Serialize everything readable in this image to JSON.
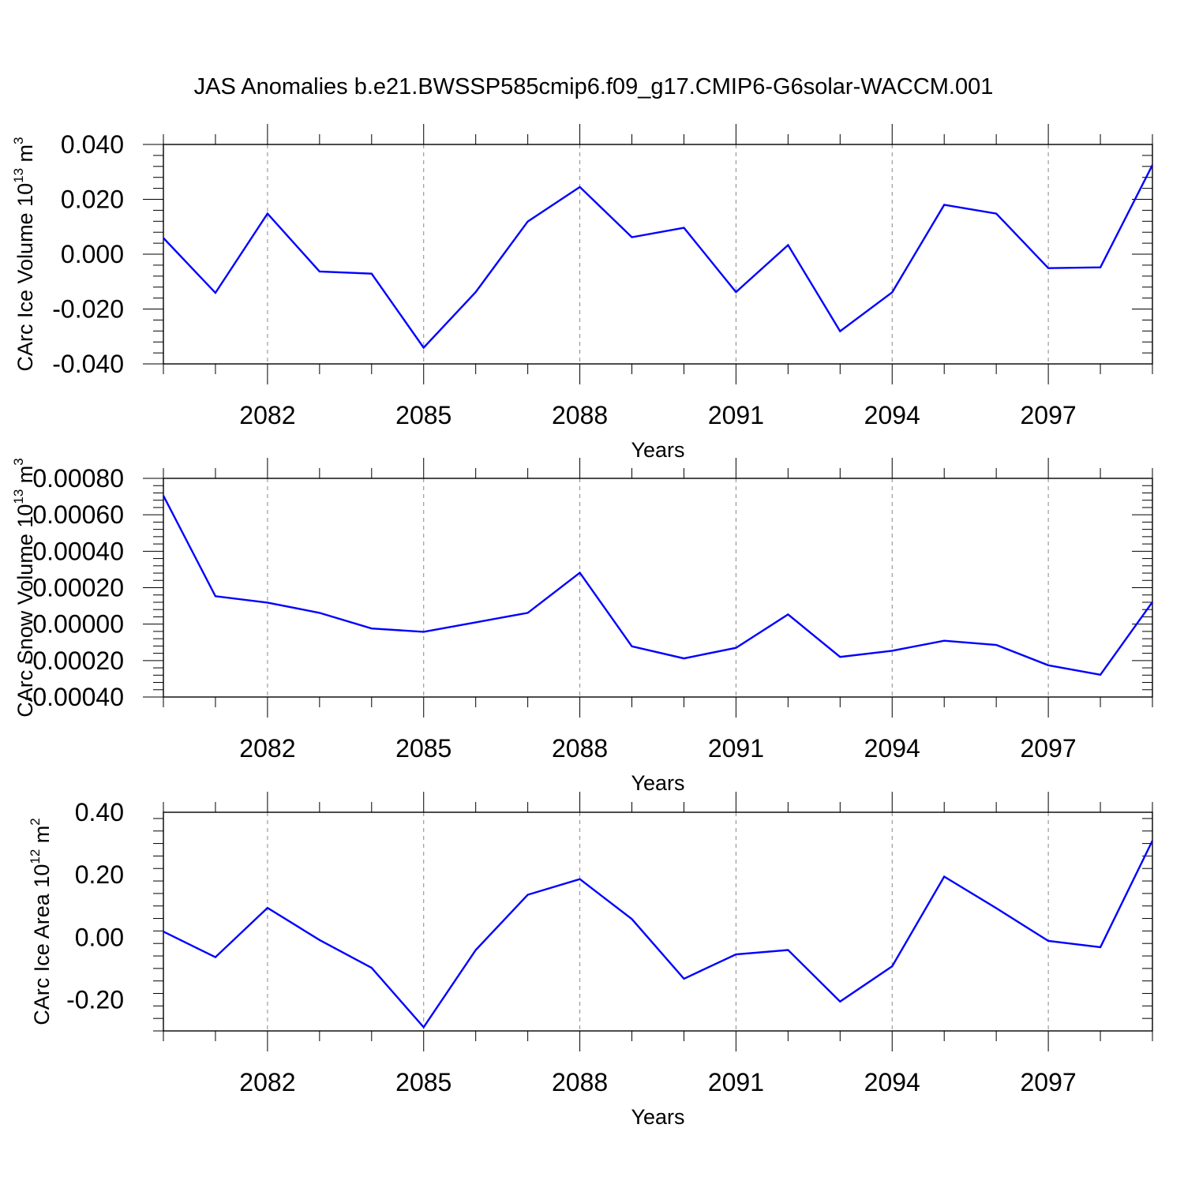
{
  "figure": {
    "title": "JAS Anomalies b.e21.BWSSP585cmip6.f09_g17.CMIP6-G6solar-WACCM.001"
  },
  "colors": {
    "series": "#0000ff",
    "axis": "#000000",
    "grid": "#888888"
  },
  "chart_data": [
    {
      "type": "line",
      "title": "JAS Anomalies b.e21.BWSSP585cmip6.f09_g17.CMIP6-G6solar-WACCM.001",
      "xlabel": "Years",
      "ylabel": {
        "main": "CArc Ice Volume 10",
        "sup": "13",
        "unit": " m",
        "unit_sup": "3"
      },
      "xlim": [
        2080,
        2099
      ],
      "ylim": [
        -0.04,
        0.04
      ],
      "xticks": [
        2082,
        2085,
        2088,
        2091,
        2094,
        2097
      ],
      "xtick_labels": [
        "2082",
        "2085",
        "2088",
        "2091",
        "2094",
        "2097"
      ],
      "yticks": [
        -0.04,
        -0.02,
        0.0,
        0.02,
        0.04
      ],
      "ytick_labels": [
        "-0.040",
        "-0.020",
        "0.000",
        "0.020",
        "0.040"
      ],
      "grid": "vertical dashed at major x ticks",
      "series": [
        {
          "x": [
            2080,
            2081,
            2082,
            2083,
            2084,
            2085,
            2086,
            2087,
            2088,
            2089,
            2090,
            2091,
            2092,
            2093,
            2094,
            2095,
            2096,
            2097,
            2098,
            2099
          ],
          "y": [
            0.0059,
            -0.0141,
            0.0148,
            -0.0063,
            -0.0071,
            -0.0341,
            -0.0138,
            0.0119,
            0.0245,
            0.0062,
            0.0096,
            -0.0138,
            0.0033,
            -0.0281,
            -0.0139,
            0.018,
            0.0148,
            -0.0051,
            -0.0048,
            0.0325
          ]
        }
      ]
    },
    {
      "type": "line",
      "xlabel": "Years",
      "ylabel": {
        "main": "CArc Snow Volume 10",
        "sup": "13",
        "unit": " m",
        "unit_sup": "3"
      },
      "xlim": [
        2080,
        2099
      ],
      "ylim": [
        -0.0004,
        0.0008
      ],
      "xticks": [
        2082,
        2085,
        2088,
        2091,
        2094,
        2097
      ],
      "xtick_labels": [
        "2082",
        "2085",
        "2088",
        "2091",
        "2094",
        "2097"
      ],
      "yticks": [
        -0.0004,
        -0.0002,
        0.0,
        0.0002,
        0.0004,
        0.0006,
        0.0008
      ],
      "ytick_labels": [
        "-0.00040",
        "-0.00020",
        "0.00000",
        "0.00020",
        "0.00040",
        "0.00060",
        "0.00080"
      ],
      "grid": "vertical dashed at major x ticks",
      "series": [
        {
          "x": [
            2080,
            2081,
            2082,
            2083,
            2084,
            2085,
            2086,
            2087,
            2088,
            2089,
            2090,
            2091,
            2092,
            2093,
            2094,
            2095,
            2096,
            2097,
            2098,
            2099
          ],
          "y": [
            0.000705,
            0.000153,
            0.000118,
            6.2e-05,
            -2.4e-05,
            -4.2e-05,
            1e-05,
            6.2e-05,
            0.000282,
            -0.000122,
            -0.000188,
            -0.00013,
            5.3e-05,
            -0.00018,
            -0.000146,
            -9.1e-05,
            -0.000114,
            -0.000226,
            -0.000278,
            0.000121
          ]
        }
      ]
    },
    {
      "type": "line",
      "xlabel": "Years",
      "ylabel": {
        "main": "CArc Ice Area 10",
        "sup": "12",
        "unit": " m",
        "unit_sup": "2"
      },
      "xlim": [
        2080,
        2099
      ],
      "ylim": [
        -0.3,
        0.4
      ],
      "xticks": [
        2082,
        2085,
        2088,
        2091,
        2094,
        2097
      ],
      "xtick_labels": [
        "2082",
        "2085",
        "2088",
        "2091",
        "2094",
        "2097"
      ],
      "yticks": [
        -0.2,
        0.0,
        0.2,
        0.4
      ],
      "ytick_labels": [
        "-0.20",
        "0.00",
        "0.20",
        "0.40"
      ],
      "grid": "vertical dashed at major x ticks",
      "series": [
        {
          "x": [
            2080,
            2081,
            2082,
            2083,
            2084,
            2085,
            2086,
            2087,
            2088,
            2089,
            2090,
            2091,
            2092,
            2093,
            2094,
            2095,
            2096,
            2097,
            2098,
            2099
          ],
          "y": [
            0.018,
            -0.064,
            0.094,
            -0.009,
            -0.098,
            -0.288,
            -0.041,
            0.136,
            0.186,
            0.058,
            -0.133,
            -0.055,
            -0.041,
            -0.206,
            -0.093,
            0.194,
            0.093,
            -0.012,
            -0.032,
            0.309
          ]
        }
      ]
    }
  ]
}
